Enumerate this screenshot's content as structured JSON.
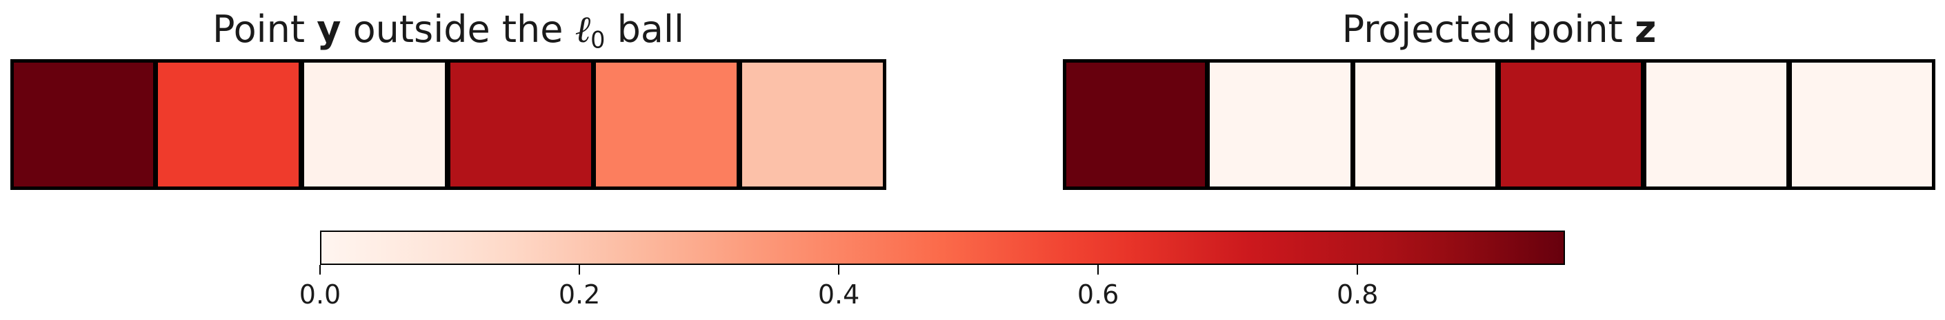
{
  "chart_data": {
    "type": "heatmap",
    "colormap": "Reds",
    "panels": [
      {
        "title_prefix": "Point ",
        "title_bold": "y",
        "title_middle": " outside the ",
        "title_ell": "ℓ",
        "title_ell_sub": "0",
        "title_suffix": " ball",
        "values": [
          0.96,
          0.6,
          0.02,
          0.8,
          0.42,
          0.22
        ]
      },
      {
        "title_prefix": "Projected point ",
        "title_bold": "z",
        "values": [
          0.96,
          0.0,
          0.0,
          0.8,
          0.0,
          0.0
        ]
      }
    ],
    "colorbar": {
      "vmin": 0.0,
      "vmax": 0.96,
      "ticks": [
        0.0,
        0.2,
        0.4,
        0.6,
        0.8
      ],
      "tick_labels": [
        "0.0",
        "0.2",
        "0.4",
        "0.6",
        "0.8"
      ]
    }
  }
}
